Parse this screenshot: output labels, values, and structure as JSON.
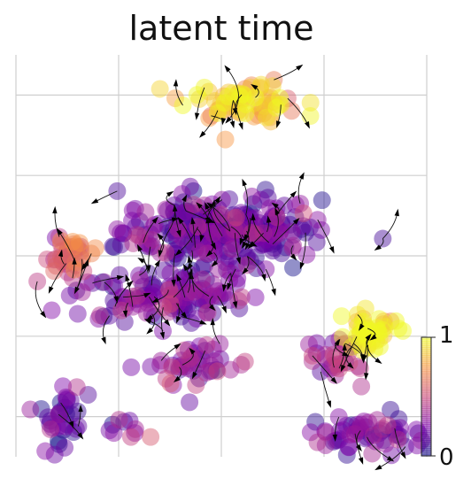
{
  "chart_data": {
    "type": "scatter",
    "title": "latent time",
    "grid": true,
    "legend": "colorbar-right",
    "colorbar": {
      "min_label": "0",
      "max_label": "1",
      "min": 0,
      "max": 1,
      "colormap": "plasma"
    },
    "xlim": [
      0,
      10
    ],
    "ylim": [
      0,
      10
    ],
    "clusters": [
      {
        "name": "",
        "cx": 5.0,
        "cy": 5.6,
        "sx": 2.4,
        "sy": 0.9,
        "n": 260,
        "t": 0.18
      },
      {
        "name": "",
        "cx": 1.2,
        "cy": 5.0,
        "sx": 0.6,
        "sy": 0.5,
        "n": 40,
        "t": 0.55
      },
      {
        "name": "",
        "cx": 5.5,
        "cy": 8.9,
        "sx": 1.4,
        "sy": 0.5,
        "n": 70,
        "t": 0.85
      },
      {
        "name": "",
        "cx": 3.6,
        "cy": 4.0,
        "sx": 2.2,
        "sy": 0.6,
        "n": 120,
        "t": 0.22
      },
      {
        "name": "",
        "cx": 8.6,
        "cy": 3.1,
        "sx": 0.7,
        "sy": 0.5,
        "n": 45,
        "t": 0.9
      },
      {
        "name": "",
        "cx": 7.8,
        "cy": 2.4,
        "sx": 0.6,
        "sy": 0.6,
        "n": 30,
        "t": 0.35
      },
      {
        "name": "",
        "cx": 8.5,
        "cy": 0.6,
        "sx": 1.5,
        "sy": 0.5,
        "n": 60,
        "t": 0.2
      },
      {
        "name": "",
        "cx": 1.1,
        "cy": 1.0,
        "sx": 0.5,
        "sy": 0.9,
        "n": 35,
        "t": 0.15
      },
      {
        "name": "",
        "cx": 4.5,
        "cy": 2.3,
        "sx": 1.2,
        "sy": 0.6,
        "n": 45,
        "t": 0.28
      },
      {
        "name": "",
        "cx": 2.8,
        "cy": 0.7,
        "sx": 0.6,
        "sy": 0.3,
        "n": 10,
        "t": 0.3
      }
    ]
  }
}
